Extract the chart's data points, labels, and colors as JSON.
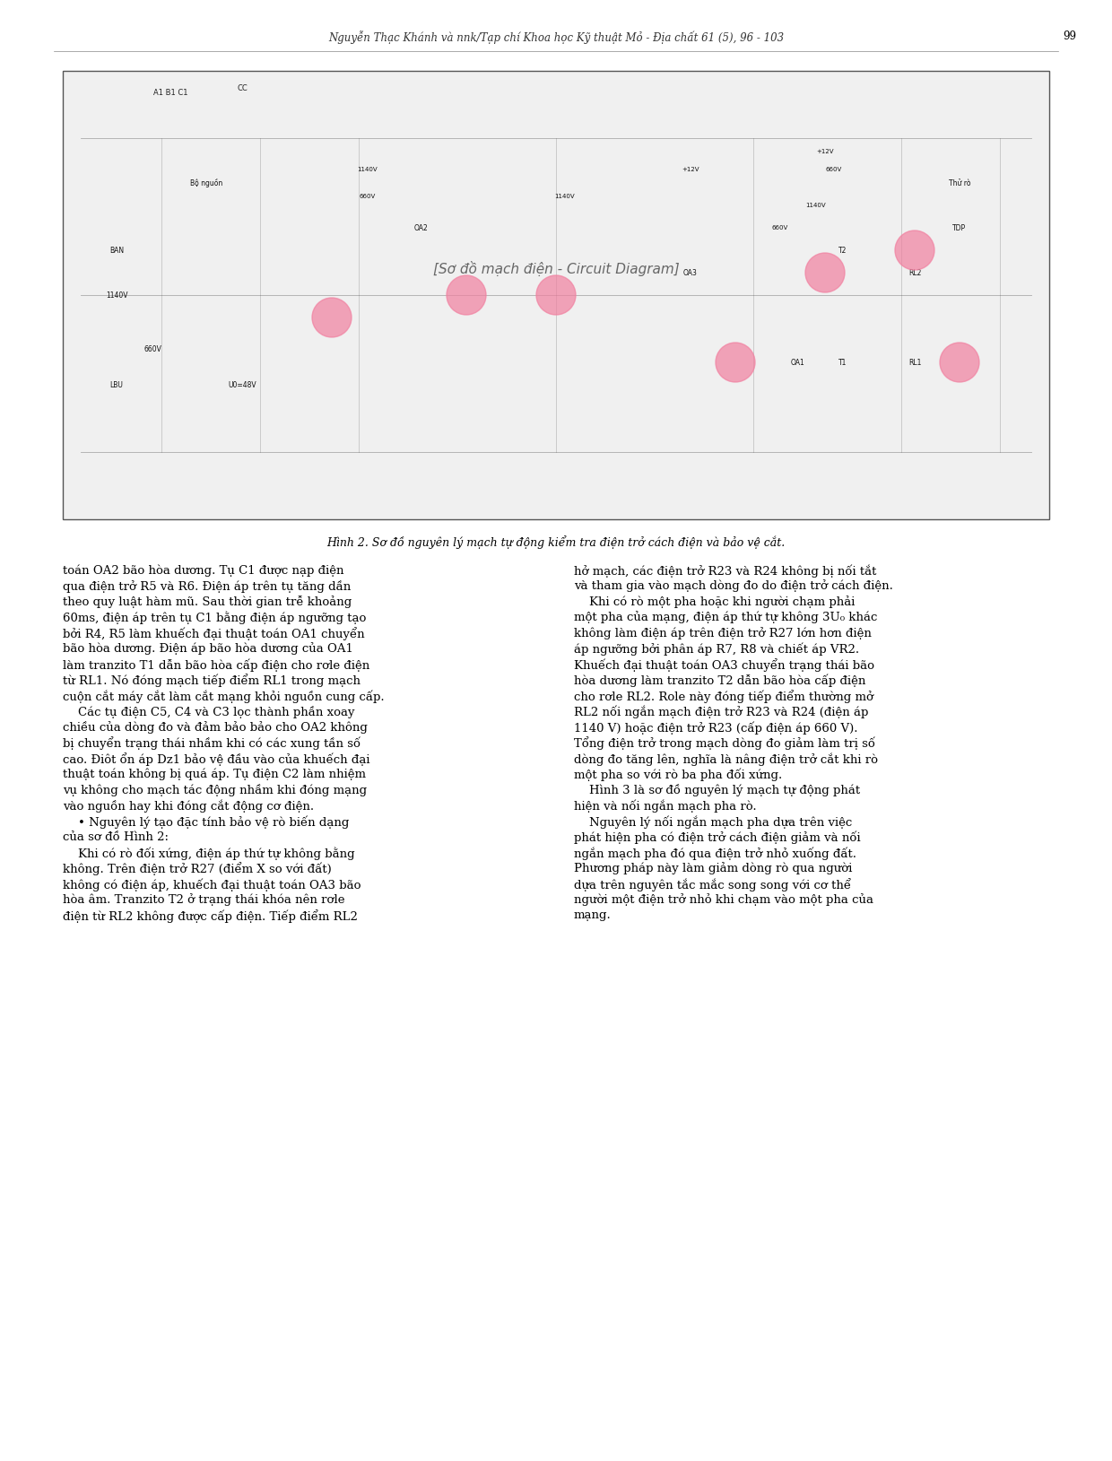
{
  "header": "Nguyễn Thạc Khánh và nnk/Tạp chí Khoa học Kỹ thuật Mỏ - Địa chất 61 (5), 96 - 103",
  "page_number": "99",
  "figure_caption": "Hình 2. Sơ đồ nguyên lý mạch tự động kiểm tra điện trở cách điện và bảo vệ cắt.",
  "left_column_text": [
    "toán OA2 bão hòa dương. Tụ C1 được nạp điện",
    "qua điện trở R5 và R6. Điện áp trên tụ tăng dần",
    "theo quy luật hàm mũ. Sau thời gian trễ khoảng",
    "60ms, điện áp trên tụ C1 bằng điện áp ngưỡng tạo",
    "bởi R4, R5 làm khuếch đại thuật toán OA1 chuyển",
    "bão hòa dương. Điện áp bão hòa dương của OA1",
    "làm tranzito T1 dẫn bão hòa cấp điện cho rơle điện",
    "từ RL1. Nó đóng mạch tiếp điểm RL1 trong mạch",
    "cuộn cắt máy cắt làm cắt mạng khỏi nguồn cung cấp.",
    "    Các tụ điện C5, C4 và C3 lọc thành phần xoay",
    "chiều của dòng đo và đảm bảo bảo cho OA2 không",
    "bị chuyển trạng thái nhầm khi có các xung tần số",
    "cao. Điôt ổn áp Dz1 bảo vệ đầu vào của khuếch đại",
    "thuật toán không bị quá áp. Tụ điện C2 làm nhiệm",
    "vụ không cho mạch tác động nhầm khi đóng mạng",
    "vào nguồn hay khi đóng cắt động cơ điện.",
    "    • Nguyên lý tạo đặc tính bảo vệ rò biến dạng",
    "của sơ đồ Hình 2:",
    "    Khi có rò đối xứng, điện áp thứ tự không bằng",
    "không. Trên điện trở R27 (điểm X so với đất)",
    "không có điện áp, khuếch đại thuật toán OA3 bão",
    "hòa âm. Tranzito T2 ở trạng thái khóa nên rơle",
    "điện từ RL2 không được cấp điện. Tiếp điểm RL2"
  ],
  "right_column_text": [
    "hở mạch, các điện trở R23 và R24 không bị nối tắt",
    "và tham gia vào mạch dòng đo do điện trở cách điện.",
    "    Khi có rò một pha hoặc khi người chạm phải",
    "một pha của mạng, điện áp thứ tự không 3U₀ khác",
    "không làm điện áp trên điện trở R27 lớn hơn điện",
    "áp ngưỡng bởi phân áp R7, R8 và chiết áp VR2.",
    "Khuếch đại thuật toán OA3 chuyển trạng thái bão",
    "hòa dương làm tranzito T2 dẫn bão hòa cấp điện",
    "cho rơle RL2. Role này đóng tiếp điểm thường mở",
    "RL2 nối ngắn mạch điện trở R23 và R24 (điện áp",
    "1140 V) hoặc điện trở R23 (cấp điện áp 660 V).",
    "Tổng điện trở trong mạch dòng đo giảm làm trị số",
    "dòng đo tăng lên, nghĩa là nâng điện trở cắt khi rò",
    "một pha so với rò ba pha đối xứng.",
    "    Hình 3 là sơ đồ nguyên lý mạch tự động phát",
    "hiện và nối ngắn mạch pha rò.",
    "    Nguyên lý nối ngắn mạch pha dựa trên việc",
    "phát hiện pha có điện trở cách điện giảm và nối",
    "ngắn mạch pha đó qua điện trở nhỏ xuống đất.",
    "Phương pháp này làm giảm dòng rò qua người",
    "dựa trên nguyên tắc mắc song song với cơ thể",
    "người một điện trở nhỏ khi chạm vào một pha của",
    "mạng."
  ],
  "bg_color": "#ffffff",
  "text_color": "#000000",
  "header_color": "#333333",
  "font_size_body": 9.5,
  "font_size_header": 8.5,
  "font_size_caption": 9.0
}
